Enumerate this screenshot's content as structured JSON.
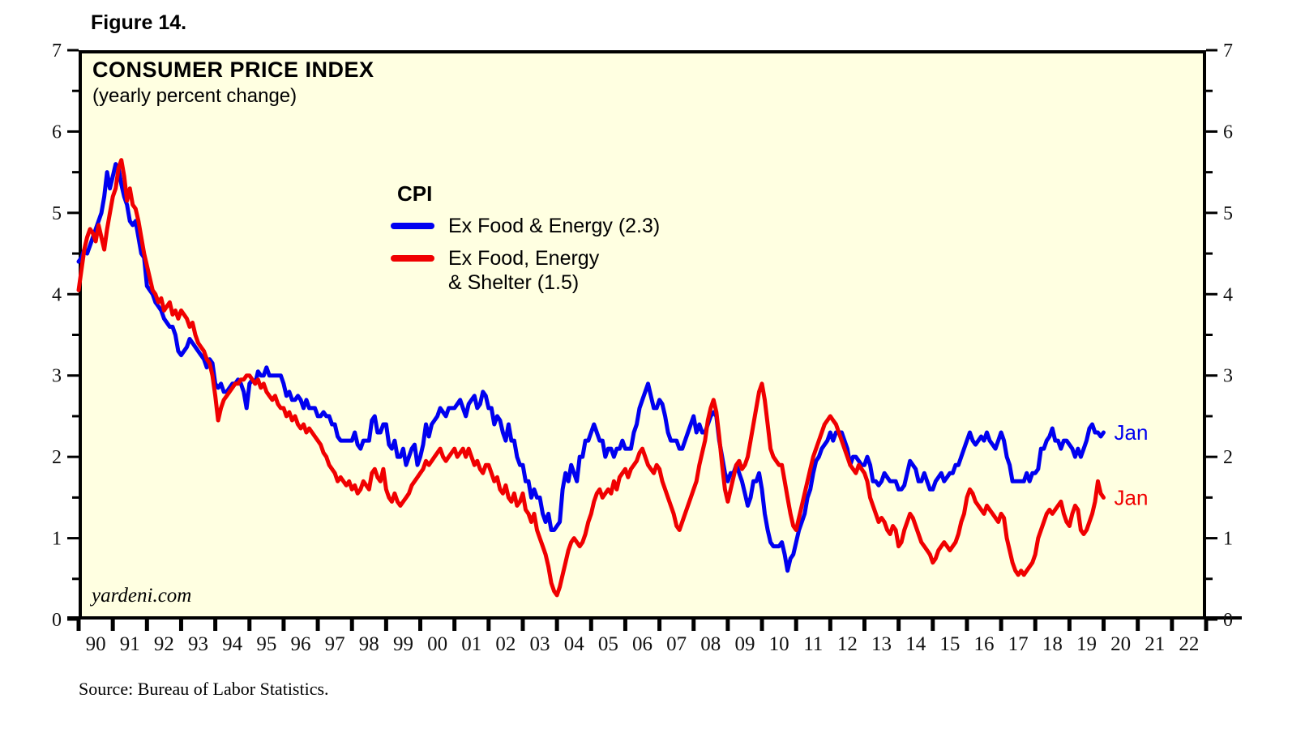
{
  "figure": {
    "label": "Figure 14."
  },
  "chart": {
    "title": "CONSUMER PRICE INDEX",
    "subtitle": "(yearly percent change)",
    "watermark": "yardeni.com",
    "source_note": "Source: Bureau of Labor Statistics."
  },
  "legend": {
    "heading": "CPI",
    "items": [
      {
        "label_line1": "Ex Food & Energy (2.3)",
        "label_line2": ""
      },
      {
        "label_line1": "Ex Food, Energy",
        "label_line2": "& Shelter (1.5)"
      }
    ]
  },
  "colors": {
    "page_background": "#ffffff",
    "plot_background": "#ffffe1",
    "axis": "#000000",
    "blue": "#0000f0",
    "red": "#f00000"
  },
  "chart_data": {
    "type": "line",
    "title": "CONSUMER PRICE INDEX",
    "subtitle": "(yearly percent change)",
    "frequency": "monthly",
    "x_start": 1990,
    "x_range": [
      1990,
      2023
    ],
    "y_range": [
      0,
      7
    ],
    "y_ticks": [
      0,
      1,
      2,
      3,
      4,
      5,
      6,
      7
    ],
    "y_minor_tick_step": 0.5,
    "grid": false,
    "legend_position": "inside-upper-left",
    "x_tick_labels": [
      "90",
      "91",
      "92",
      "93",
      "94",
      "95",
      "96",
      "97",
      "98",
      "99",
      "00",
      "01",
      "02",
      "03",
      "04",
      "05",
      "06",
      "07",
      "08",
      "09",
      "10",
      "11",
      "12",
      "13",
      "14",
      "15",
      "16",
      "17",
      "18",
      "19",
      "20",
      "21",
      "22"
    ],
    "series": [
      {
        "id": "ex-food-energy",
        "name": "CPI Ex Food & Energy",
        "color": "#0000f0",
        "latest_label": "Jan",
        "latest_value": 2.3,
        "values": [
          4.4,
          4.45,
          4.55,
          4.5,
          4.6,
          4.7,
          4.8,
          4.9,
          5.0,
          5.2,
          5.5,
          5.3,
          5.45,
          5.6,
          5.55,
          5.35,
          5.2,
          5.1,
          4.9,
          4.85,
          4.9,
          4.7,
          4.5,
          4.45,
          4.1,
          4.05,
          4.0,
          3.9,
          3.85,
          3.8,
          3.7,
          3.65,
          3.6,
          3.6,
          3.5,
          3.3,
          3.25,
          3.3,
          3.35,
          3.45,
          3.4,
          3.35,
          3.3,
          3.25,
          3.2,
          3.1,
          3.2,
          3.15,
          2.9,
          2.85,
          2.9,
          2.8,
          2.8,
          2.85,
          2.9,
          2.9,
          2.95,
          2.9,
          2.8,
          2.6,
          2.9,
          2.95,
          2.9,
          3.05,
          3.0,
          3.0,
          3.1,
          3.0,
          3.0,
          3.0,
          3.0,
          3.0,
          2.9,
          2.75,
          2.8,
          2.7,
          2.7,
          2.75,
          2.7,
          2.6,
          2.7,
          2.6,
          2.6,
          2.6,
          2.5,
          2.5,
          2.55,
          2.5,
          2.5,
          2.4,
          2.4,
          2.25,
          2.2,
          2.2,
          2.2,
          2.2,
          2.2,
          2.3,
          2.15,
          2.1,
          2.2,
          2.2,
          2.2,
          2.45,
          2.5,
          2.3,
          2.3,
          2.4,
          2.4,
          2.15,
          2.1,
          2.2,
          2.0,
          2.0,
          2.1,
          1.9,
          2.0,
          2.1,
          2.15,
          1.9,
          2.0,
          2.15,
          2.4,
          2.25,
          2.4,
          2.45,
          2.5,
          2.6,
          2.55,
          2.5,
          2.6,
          2.6,
          2.6,
          2.65,
          2.7,
          2.6,
          2.5,
          2.65,
          2.7,
          2.75,
          2.6,
          2.65,
          2.8,
          2.75,
          2.6,
          2.6,
          2.4,
          2.5,
          2.45,
          2.3,
          2.2,
          2.4,
          2.2,
          2.2,
          2.0,
          1.9,
          1.9,
          1.7,
          1.7,
          1.5,
          1.6,
          1.5,
          1.5,
          1.3,
          1.2,
          1.3,
          1.1,
          1.1,
          1.15,
          1.2,
          1.6,
          1.8,
          1.7,
          1.9,
          1.8,
          1.7,
          2.0,
          2.0,
          2.2,
          2.2,
          2.3,
          2.4,
          2.3,
          2.2,
          2.2,
          2.0,
          2.1,
          2.1,
          2.0,
          2.1,
          2.1,
          2.2,
          2.1,
          2.1,
          2.1,
          2.3,
          2.4,
          2.6,
          2.7,
          2.8,
          2.9,
          2.75,
          2.6,
          2.6,
          2.7,
          2.65,
          2.5,
          2.3,
          2.2,
          2.2,
          2.2,
          2.1,
          2.1,
          2.2,
          2.3,
          2.4,
          2.5,
          2.3,
          2.4,
          2.3,
          2.3,
          2.4,
          2.5,
          2.55,
          2.5,
          2.2,
          2.0,
          1.8,
          1.7,
          1.8,
          1.8,
          1.9,
          1.8,
          1.7,
          1.55,
          1.4,
          1.5,
          1.7,
          1.7,
          1.8,
          1.6,
          1.3,
          1.1,
          0.95,
          0.9,
          0.9,
          0.9,
          0.95,
          0.8,
          0.6,
          0.75,
          0.8,
          0.95,
          1.1,
          1.2,
          1.3,
          1.5,
          1.6,
          1.8,
          1.95,
          2.0,
          2.1,
          2.15,
          2.2,
          2.3,
          2.2,
          2.3,
          2.3,
          2.3,
          2.2,
          2.1,
          1.9,
          2.0,
          2.0,
          1.95,
          1.9,
          1.9,
          2.0,
          1.9,
          1.7,
          1.7,
          1.65,
          1.7,
          1.8,
          1.75,
          1.7,
          1.7,
          1.7,
          1.6,
          1.6,
          1.65,
          1.8,
          1.95,
          1.9,
          1.85,
          1.7,
          1.7,
          1.8,
          1.7,
          1.6,
          1.6,
          1.7,
          1.75,
          1.8,
          1.7,
          1.75,
          1.8,
          1.8,
          1.9,
          1.9,
          2.0,
          2.1,
          2.2,
          2.3,
          2.2,
          2.15,
          2.2,
          2.25,
          2.2,
          2.3,
          2.2,
          2.15,
          2.1,
          2.2,
          2.3,
          2.2,
          2.0,
          1.9,
          1.7,
          1.7,
          1.7,
          1.7,
          1.7,
          1.8,
          1.7,
          1.8,
          1.8,
          1.85,
          2.1,
          2.1,
          2.2,
          2.25,
          2.35,
          2.2,
          2.2,
          2.1,
          2.2,
          2.2,
          2.15,
          2.1,
          2.0,
          2.1,
          2.0,
          2.1,
          2.2,
          2.35,
          2.4,
          2.3,
          2.3,
          2.25,
          2.3
        ]
      },
      {
        "id": "ex-food-energy-shelter",
        "name": "CPI Ex Food, Energy & Shelter",
        "color": "#f00000",
        "latest_label": "Jan",
        "latest_value": 1.5,
        "values": [
          4.05,
          4.3,
          4.55,
          4.7,
          4.8,
          4.75,
          4.65,
          4.85,
          4.7,
          4.55,
          4.8,
          5.0,
          5.2,
          5.3,
          5.55,
          5.65,
          5.45,
          5.15,
          5.3,
          5.1,
          5.05,
          4.9,
          4.7,
          4.5,
          4.35,
          4.2,
          4.05,
          4.0,
          3.9,
          3.95,
          3.8,
          3.85,
          3.9,
          3.75,
          3.8,
          3.7,
          3.8,
          3.75,
          3.7,
          3.6,
          3.65,
          3.5,
          3.4,
          3.35,
          3.3,
          3.2,
          3.15,
          3.0,
          2.75,
          2.45,
          2.6,
          2.7,
          2.75,
          2.8,
          2.85,
          2.9,
          2.9,
          2.95,
          2.95,
          3.0,
          3.0,
          2.95,
          2.9,
          2.95,
          2.85,
          2.9,
          2.8,
          2.75,
          2.7,
          2.75,
          2.65,
          2.6,
          2.6,
          2.5,
          2.55,
          2.45,
          2.5,
          2.4,
          2.35,
          2.4,
          2.3,
          2.35,
          2.3,
          2.25,
          2.2,
          2.15,
          2.05,
          2.0,
          1.9,
          1.85,
          1.8,
          1.7,
          1.75,
          1.7,
          1.65,
          1.7,
          1.6,
          1.65,
          1.55,
          1.6,
          1.7,
          1.65,
          1.6,
          1.8,
          1.85,
          1.75,
          1.7,
          1.85,
          1.6,
          1.5,
          1.45,
          1.55,
          1.45,
          1.4,
          1.45,
          1.5,
          1.55,
          1.65,
          1.7,
          1.75,
          1.8,
          1.85,
          1.95,
          1.9,
          1.95,
          2.0,
          2.05,
          2.1,
          2.0,
          1.95,
          2.0,
          2.05,
          2.1,
          2.0,
          2.05,
          2.1,
          2.0,
          2.1,
          2.0,
          1.9,
          1.95,
          1.85,
          1.8,
          1.9,
          1.9,
          1.8,
          1.7,
          1.75,
          1.6,
          1.55,
          1.65,
          1.5,
          1.45,
          1.55,
          1.4,
          1.45,
          1.55,
          1.35,
          1.3,
          1.2,
          1.3,
          1.1,
          1.0,
          0.9,
          0.8,
          0.65,
          0.45,
          0.35,
          0.3,
          0.4,
          0.55,
          0.7,
          0.85,
          0.95,
          1.0,
          0.95,
          0.9,
          0.95,
          1.05,
          1.2,
          1.3,
          1.45,
          1.55,
          1.6,
          1.5,
          1.55,
          1.6,
          1.55,
          1.7,
          1.6,
          1.75,
          1.8,
          1.85,
          1.75,
          1.85,
          1.9,
          1.95,
          2.05,
          2.1,
          2.0,
          1.9,
          1.85,
          1.8,
          1.9,
          1.85,
          1.7,
          1.6,
          1.5,
          1.4,
          1.3,
          1.15,
          1.1,
          1.2,
          1.3,
          1.4,
          1.5,
          1.6,
          1.7,
          1.9,
          2.05,
          2.2,
          2.45,
          2.6,
          2.7,
          2.55,
          2.25,
          1.9,
          1.6,
          1.45,
          1.6,
          1.75,
          1.9,
          1.95,
          1.85,
          1.9,
          2.0,
          2.2,
          2.4,
          2.6,
          2.8,
          2.9,
          2.7,
          2.4,
          2.1,
          2.0,
          1.95,
          1.9,
          1.9,
          1.7,
          1.5,
          1.3,
          1.15,
          1.1,
          1.25,
          1.4,
          1.55,
          1.7,
          1.85,
          2.0,
          2.1,
          2.2,
          2.3,
          2.4,
          2.45,
          2.5,
          2.45,
          2.4,
          2.3,
          2.2,
          2.1,
          2.0,
          1.9,
          1.85,
          1.8,
          1.9,
          1.85,
          1.8,
          1.7,
          1.5,
          1.4,
          1.3,
          1.2,
          1.25,
          1.2,
          1.1,
          1.05,
          1.15,
          1.1,
          0.9,
          0.95,
          1.1,
          1.2,
          1.3,
          1.25,
          1.15,
          1.05,
          0.95,
          0.9,
          0.85,
          0.8,
          0.7,
          0.75,
          0.85,
          0.9,
          0.95,
          0.9,
          0.85,
          0.9,
          0.95,
          1.05,
          1.2,
          1.3,
          1.5,
          1.6,
          1.55,
          1.45,
          1.4,
          1.35,
          1.3,
          1.4,
          1.35,
          1.3,
          1.25,
          1.2,
          1.3,
          1.25,
          1.0,
          0.85,
          0.7,
          0.6,
          0.55,
          0.6,
          0.55,
          0.6,
          0.65,
          0.7,
          0.8,
          1.0,
          1.1,
          1.2,
          1.3,
          1.35,
          1.3,
          1.35,
          1.4,
          1.45,
          1.3,
          1.2,
          1.15,
          1.3,
          1.4,
          1.35,
          1.1,
          1.05,
          1.1,
          1.2,
          1.3,
          1.45,
          1.7,
          1.55,
          1.5
        ]
      }
    ]
  }
}
